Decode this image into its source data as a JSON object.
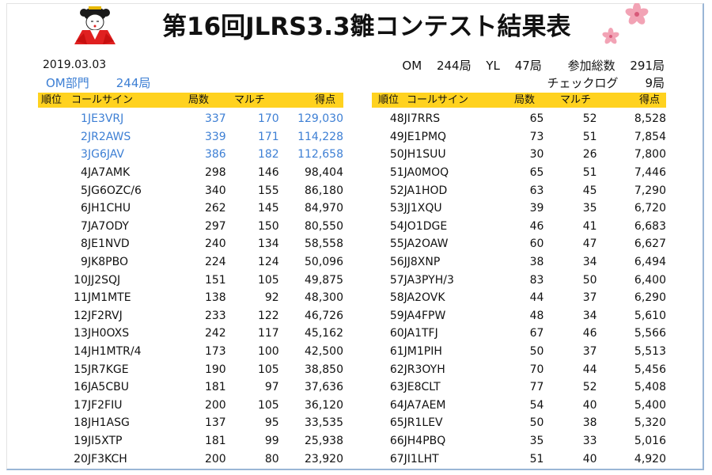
{
  "title": "第16回JLRS3.3雛コンテスト結果表",
  "date": "2019.03.03",
  "division": {
    "name": "OM部門",
    "count": "244局"
  },
  "summary": {
    "om_label": "OM",
    "om_count": "244局",
    "yl_label": "YL",
    "yl_count": "47局",
    "total_label": "参加総数",
    "total_count": "291局",
    "checklog_label": "チェックログ",
    "checklog_count": "9局"
  },
  "headers": {
    "rank": "順位",
    "callsign": "コールサイン",
    "qsos": "局数",
    "multi": "マルチ",
    "score": "得点"
  },
  "colors": {
    "highlight": "#ffd21f",
    "top3": "#3d7fd4"
  },
  "icons": {
    "mascot": "hina-doll-icon",
    "flower": "cherry-blossom-icon"
  },
  "left_rows": [
    {
      "rank": "1",
      "call": "JE3VRJ",
      "qsos": "337",
      "multi": "170",
      "score": "129,030"
    },
    {
      "rank": "2",
      "call": "JR2AWS",
      "qsos": "339",
      "multi": "171",
      "score": "114,228"
    },
    {
      "rank": "3",
      "call": "JG6JAV",
      "qsos": "386",
      "multi": "182",
      "score": "112,658"
    },
    {
      "rank": "4",
      "call": "JA7AMK",
      "qsos": "298",
      "multi": "146",
      "score": "98,404"
    },
    {
      "rank": "5",
      "call": "JG6OZC/6",
      "qsos": "340",
      "multi": "155",
      "score": "86,180"
    },
    {
      "rank": "6",
      "call": "JH1CHU",
      "qsos": "262",
      "multi": "145",
      "score": "84,970"
    },
    {
      "rank": "7",
      "call": "JA7ODY",
      "qsos": "297",
      "multi": "150",
      "score": "80,550"
    },
    {
      "rank": "8",
      "call": "JE1NVD",
      "qsos": "240",
      "multi": "134",
      "score": "58,558"
    },
    {
      "rank": "9",
      "call": "JK8PBO",
      "qsos": "224",
      "multi": "124",
      "score": "50,096"
    },
    {
      "rank": "10",
      "call": "JJ2SQJ",
      "qsos": "151",
      "multi": "105",
      "score": "49,875"
    },
    {
      "rank": "11",
      "call": "JM1MTE",
      "qsos": "138",
      "multi": "92",
      "score": "48,300"
    },
    {
      "rank": "12",
      "call": "JF2RVJ",
      "qsos": "233",
      "multi": "122",
      "score": "46,726"
    },
    {
      "rank": "13",
      "call": "JH0OXS",
      "qsos": "242",
      "multi": "117",
      "score": "45,162"
    },
    {
      "rank": "14",
      "call": "JH1MTR/4",
      "qsos": "173",
      "multi": "100",
      "score": "42,500"
    },
    {
      "rank": "15",
      "call": "JR7KGE",
      "qsos": "190",
      "multi": "105",
      "score": "38,850"
    },
    {
      "rank": "16",
      "call": "JA5CBU",
      "qsos": "181",
      "multi": "97",
      "score": "37,636"
    },
    {
      "rank": "17",
      "call": "JF2FIU",
      "qsos": "200",
      "multi": "105",
      "score": "36,120"
    },
    {
      "rank": "18",
      "call": "JH1ASG",
      "qsos": "137",
      "multi": "95",
      "score": "33,535"
    },
    {
      "rank": "19",
      "call": "JI5XTP",
      "qsos": "181",
      "multi": "99",
      "score": "25,938"
    },
    {
      "rank": "20",
      "call": "JF3KCH",
      "qsos": "200",
      "multi": "80",
      "score": "23,920"
    }
  ],
  "right_rows": [
    {
      "rank": "48",
      "call": "JI7RRS",
      "qsos": "65",
      "multi": "52",
      "score": "8,528"
    },
    {
      "rank": "49",
      "call": "JE1PMQ",
      "qsos": "73",
      "multi": "51",
      "score": "7,854"
    },
    {
      "rank": "50",
      "call": "JH1SUU",
      "qsos": "30",
      "multi": "26",
      "score": "7,800"
    },
    {
      "rank": "51",
      "call": "JA0MOQ",
      "qsos": "65",
      "multi": "51",
      "score": "7,446"
    },
    {
      "rank": "52",
      "call": "JA1HOD",
      "qsos": "63",
      "multi": "45",
      "score": "7,290"
    },
    {
      "rank": "53",
      "call": "JJ1XQU",
      "qsos": "39",
      "multi": "35",
      "score": "6,720"
    },
    {
      "rank": "54",
      "call": "JO1DGE",
      "qsos": "46",
      "multi": "41",
      "score": "6,683"
    },
    {
      "rank": "55",
      "call": "JA2OAW",
      "qsos": "60",
      "multi": "47",
      "score": "6,627"
    },
    {
      "rank": "56",
      "call": "JJ8XNP",
      "qsos": "38",
      "multi": "34",
      "score": "6,494"
    },
    {
      "rank": "57",
      "call": "JA3PYH/3",
      "qsos": "83",
      "multi": "50",
      "score": "6,400"
    },
    {
      "rank": "58",
      "call": "JA2OVK",
      "qsos": "44",
      "multi": "37",
      "score": "6,290"
    },
    {
      "rank": "59",
      "call": "JA4FPW",
      "qsos": "48",
      "multi": "34",
      "score": "5,610"
    },
    {
      "rank": "60",
      "call": "JA1TFJ",
      "qsos": "67",
      "multi": "46",
      "score": "5,566"
    },
    {
      "rank": "61",
      "call": "JM1PIH",
      "qsos": "50",
      "multi": "37",
      "score": "5,513"
    },
    {
      "rank": "62",
      "call": "JR3OYH",
      "qsos": "70",
      "multi": "44",
      "score": "5,456"
    },
    {
      "rank": "63",
      "call": "JE8CLT",
      "qsos": "77",
      "multi": "52",
      "score": "5,408"
    },
    {
      "rank": "64",
      "call": "JA7AEM",
      "qsos": "54",
      "multi": "40",
      "score": "5,400"
    },
    {
      "rank": "65",
      "call": "JR1LEV",
      "qsos": "50",
      "multi": "38",
      "score": "5,320"
    },
    {
      "rank": "66",
      "call": "JH4PBQ",
      "qsos": "35",
      "multi": "33",
      "score": "5,016"
    },
    {
      "rank": "67",
      "call": "JI1LHT",
      "qsos": "51",
      "multi": "40",
      "score": "4,920"
    }
  ]
}
